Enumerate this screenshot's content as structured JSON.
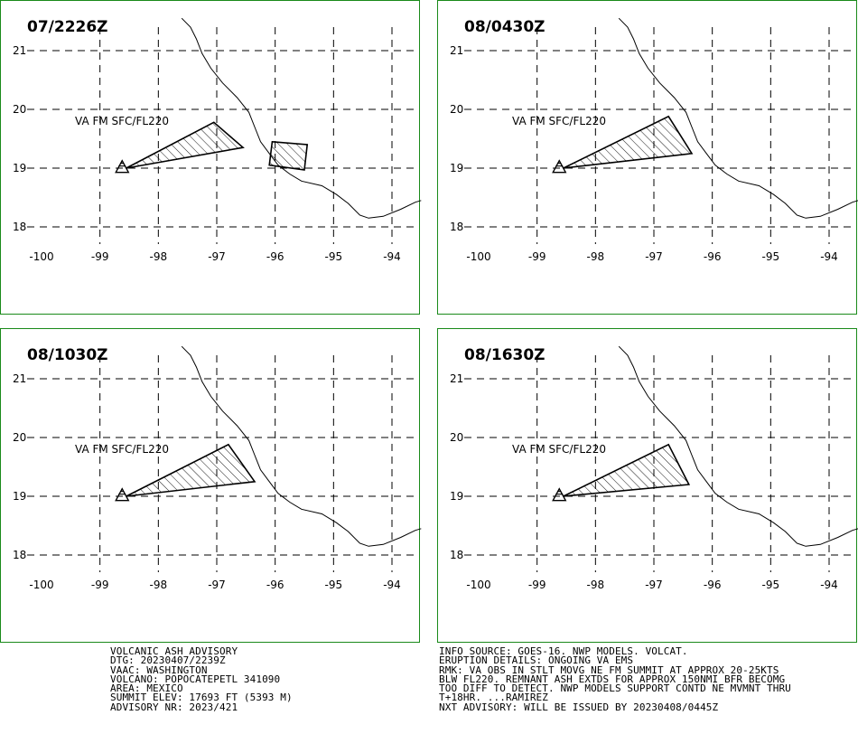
{
  "panels": [
    {
      "time": "07/2226Z",
      "label": "VA FM SFC/FL220",
      "areas": [
        [
          [
            -98.55,
            19.0
          ],
          [
            -97.05,
            19.78
          ],
          [
            -96.55,
            19.35
          ]
        ],
        [
          [
            -96.05,
            19.45
          ],
          [
            -95.45,
            19.4
          ],
          [
            -95.5,
            18.97
          ],
          [
            -96.1,
            19.05
          ]
        ]
      ]
    },
    {
      "time": "08/0430Z",
      "label": "VA FM SFC/FL220",
      "areas": [
        [
          [
            -98.55,
            19.0
          ],
          [
            -96.75,
            19.88
          ],
          [
            -96.35,
            19.25
          ]
        ]
      ]
    },
    {
      "time": "08/1030Z",
      "label": "VA FM SFC/FL220",
      "areas": [
        [
          [
            -98.55,
            19.0
          ],
          [
            -96.8,
            19.88
          ],
          [
            -96.35,
            19.25
          ]
        ]
      ]
    },
    {
      "time": "08/1630Z",
      "label": "VA FM SFC/FL220",
      "areas": [
        [
          [
            -98.55,
            19.0
          ],
          [
            -96.75,
            19.88
          ],
          [
            -96.4,
            19.2
          ]
        ]
      ]
    }
  ],
  "map": {
    "lon_ticks": [
      "-100",
      "-99",
      "-98",
      "-97",
      "-96",
      "-95",
      "-94"
    ],
    "lat_ticks": [
      "21",
      "20",
      "19",
      "18"
    ],
    "volcano": {
      "lon": -98.62,
      "lat": 19.02
    }
  },
  "advisory_left": [
    "VOLCANIC ASH ADVISORY",
    "DTG: 20230407/2239Z",
    "VAAC: WASHINGTON",
    "VOLCANO: POPOCATEPETL 341090",
    "AREA: MEXICO",
    "SUMMIT ELEV: 17693 FT (5393 M)",
    "ADVISORY NR: 2023/421"
  ],
  "advisory_right": [
    "INFO SOURCE: GOES-16. NWP MODELS. VOLCAT.",
    "ERUPTION DETAILS: ONGOING VA EMS",
    "RMK: VA OBS IN STLT MOVG NE FM SUMMIT AT APPROX 20-25KTS",
    "BLW FL220. REMNANT ASH EXTDS FOR APPROX 150NMI BFR BECOMG",
    "TOO DIFF TO DETECT. NWP MODELS SUPPORT CONTD NE MVMNT THRU",
    "T+18HR. ...RAMIREZ",
    "NXT ADVISORY: WILL BE ISSUED BY 20230408/0445Z"
  ],
  "colors": {
    "frame": "#1a8a1a",
    "grid": "#000000",
    "coast": "#000000",
    "hatch": "#000000"
  }
}
